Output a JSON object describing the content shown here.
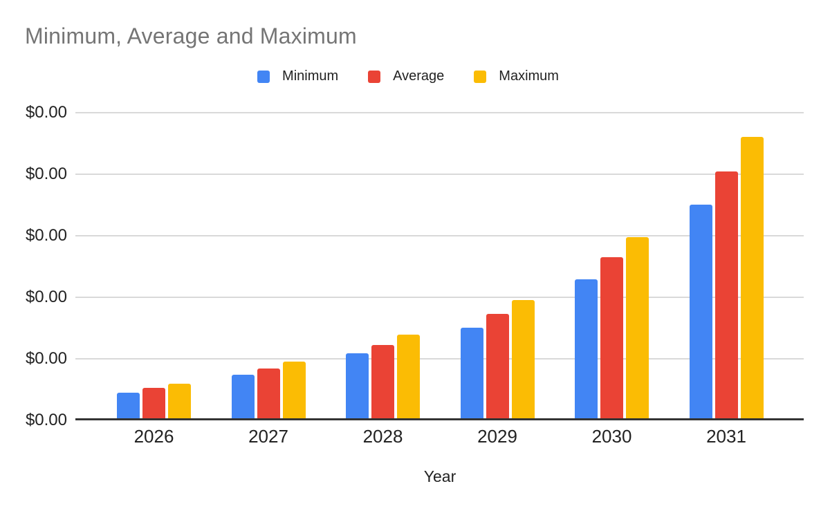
{
  "page": {
    "background": "#ffffff"
  },
  "chart_data": {
    "type": "bar",
    "title": "Minimum, Average and Maximum",
    "title_color": "#757575",
    "xlabel": "Year",
    "ylabel": "",
    "categories": [
      "2026",
      "2027",
      "2028",
      "2029",
      "2030",
      "2031"
    ],
    "series": [
      {
        "name": "Minimum",
        "color": "#4285F4",
        "values_relative": [
          0.45,
          0.74,
          1.09,
          1.51,
          2.29,
          3.51
        ]
      },
      {
        "name": "Average",
        "color": "#EA4335",
        "values_relative": [
          0.53,
          0.84,
          1.22,
          1.73,
          2.65,
          4.04
        ]
      },
      {
        "name": "Maximum",
        "color": "#FBBC04",
        "values_relative": [
          0.6,
          0.96,
          1.39,
          1.96,
          2.98,
          4.61
        ]
      }
    ],
    "y_axis": {
      "tick_labels": [
        "$0.00",
        "$0.00",
        "$0.00",
        "$0.00",
        "$0.00",
        "$0.00"
      ],
      "tick_values_relative": [
        0,
        1,
        2,
        3,
        4,
        5
      ],
      "ylim_relative": [
        0,
        5
      ],
      "units_note": "Every y-axis tick renders as $0.00 (sub-cent values); bar values are estimated in gridline divisions where 1 division = 1 unit."
    },
    "grid": true,
    "legend_position": "top",
    "axis_colors": {
      "gridline": "#d9d9d9",
      "axis_line": "#333333",
      "tick_text": "#222222"
    }
  }
}
